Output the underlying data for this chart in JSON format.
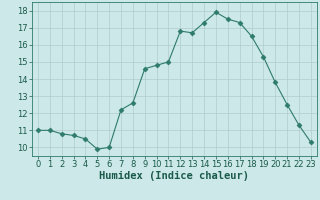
{
  "x": [
    0,
    1,
    2,
    3,
    4,
    5,
    6,
    7,
    8,
    9,
    10,
    11,
    12,
    13,
    14,
    15,
    16,
    17,
    18,
    19,
    20,
    21,
    22,
    23
  ],
  "y": [
    11.0,
    11.0,
    10.8,
    10.7,
    10.5,
    9.9,
    10.0,
    12.2,
    12.6,
    14.6,
    14.8,
    15.0,
    16.8,
    16.7,
    17.3,
    17.9,
    17.5,
    17.3,
    16.5,
    15.3,
    13.8,
    12.5,
    11.3,
    10.3
  ],
  "line_color": "#2e7b6a",
  "marker": "D",
  "marker_size": 2.5,
  "bg_color": "#cce8e8",
  "grid_color": "#b0cccc",
  "xlabel": "Humidex (Indice chaleur)",
  "xlim": [
    -0.5,
    23.5
  ],
  "ylim": [
    9.5,
    18.5
  ],
  "yticks": [
    10,
    11,
    12,
    13,
    14,
    15,
    16,
    17,
    18
  ],
  "xticks": [
    0,
    1,
    2,
    3,
    4,
    5,
    6,
    7,
    8,
    9,
    10,
    11,
    12,
    13,
    14,
    15,
    16,
    17,
    18,
    19,
    20,
    21,
    22,
    23
  ],
  "tick_label_color": "#1a5a4a",
  "spine_color": "#2e7b6a",
  "font_size": 6.0,
  "xlabel_fontsize": 7.5
}
